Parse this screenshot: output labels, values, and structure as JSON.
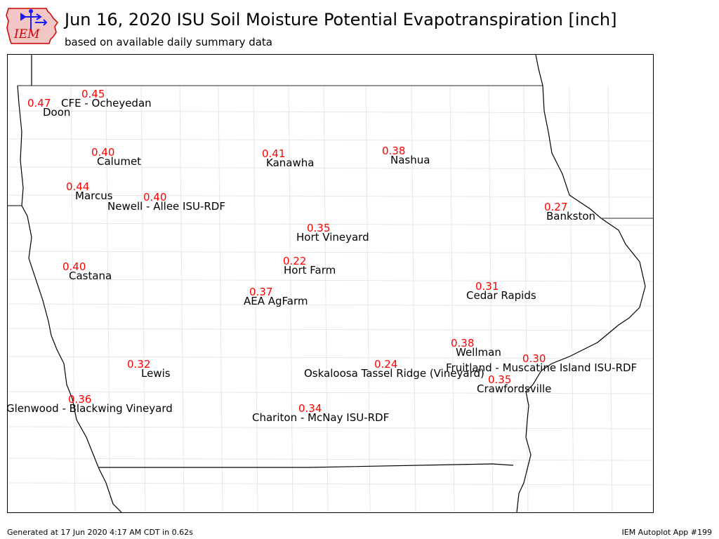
{
  "header": {
    "title": "Jun 16, 2020 ISU Soil Moisture Potential Evapotranspiration [inch]",
    "subtitle": "based on available daily summary data"
  },
  "logo": {
    "text": "IEM"
  },
  "footer": {
    "generated": "Generated at 17 Jun 2020 4:17 AM CDT in 0.62s",
    "app": "IEM Autoplot App #199"
  },
  "colors": {
    "value_text": "#ff0000",
    "station_text": "#000000",
    "county_lines": "#e6e6e6",
    "state_border": "#000000",
    "logo_red": "#cc0000",
    "logo_blue": "#1a1aff"
  },
  "stations": [
    {
      "name": "CFE - Ocheyedan",
      "value": "0.45"
    },
    {
      "name": "Doon",
      "value": "0.47"
    },
    {
      "name": "Calumet",
      "value": "0.40"
    },
    {
      "name": "Kanawha",
      "value": "0.41"
    },
    {
      "name": "Nashua",
      "value": "0.38"
    },
    {
      "name": "Marcus",
      "value": "0.44"
    },
    {
      "name": "Newell - Allee ISU-RDF",
      "value": "0.40"
    },
    {
      "name": "Bankston",
      "value": "0.27"
    },
    {
      "name": "Hort Vineyard",
      "value": "0.35"
    },
    {
      "name": "Hort Farm",
      "value": "0.22"
    },
    {
      "name": "Castana",
      "value": "0.40"
    },
    {
      "name": "AEA AgFarm",
      "value": "0.37"
    },
    {
      "name": "Cedar Rapids",
      "value": "0.31"
    },
    {
      "name": "Wellman",
      "value": "0.38"
    },
    {
      "name": "Lewis",
      "value": "0.32"
    },
    {
      "name": "Oskaloosa Tassel Ridge (Vineyard)",
      "value": "0.24"
    },
    {
      "name": "Fruitland - Muscatine Island ISU-RDF",
      "value": "0.30"
    },
    {
      "name": "Crawfordsville",
      "value": "0.35"
    },
    {
      "name": "Glenwood - Blackwing Vineyard",
      "value": "0.36"
    },
    {
      "name": "Chariton - McNay ISU-RDF",
      "value": "0.34"
    }
  ]
}
